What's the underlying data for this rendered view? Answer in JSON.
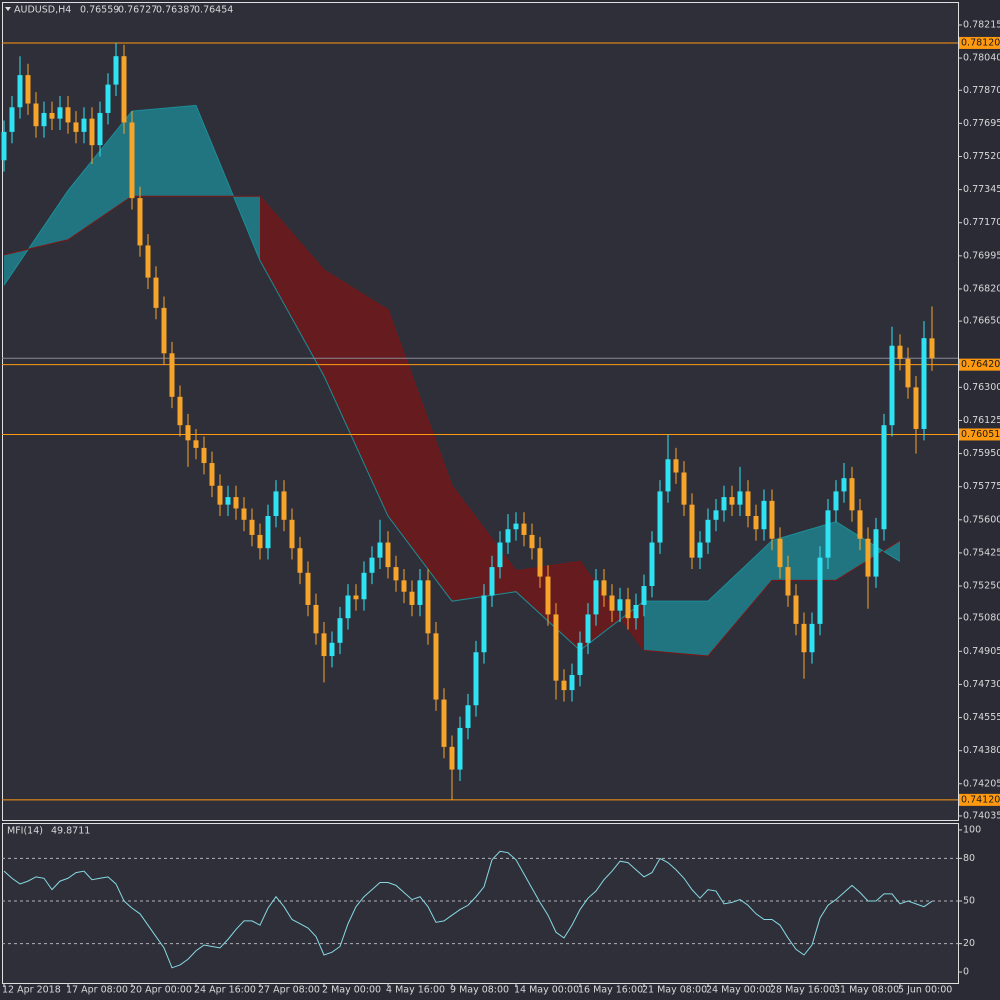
{
  "chart_data": [
    {
      "type": "candlestick",
      "symbol": "AUDUSD,H4",
      "categories": [
        "12 Apr 2018",
        null,
        null,
        null,
        null,
        null,
        null,
        null,
        "17 Apr 08:00",
        null,
        null,
        null,
        null,
        null,
        null,
        null,
        "20 Apr 00:00",
        null,
        null,
        null,
        null,
        null,
        null,
        null,
        "24 Apr 16:00",
        null,
        null,
        null,
        null,
        null,
        null,
        null,
        "27 Apr 08:00",
        null,
        null,
        null,
        null,
        null,
        null,
        null,
        "2 May 00:00",
        null,
        null,
        null,
        null,
        null,
        null,
        null,
        "4 May 16:00",
        null,
        null,
        null,
        null,
        null,
        null,
        null,
        "9 May 08:00",
        null,
        null,
        null,
        null,
        null,
        null,
        null,
        "14 May 00:00",
        null,
        null,
        null,
        null,
        null,
        null,
        null,
        "16 May 16:00",
        null,
        null,
        null,
        null,
        null,
        null,
        null,
        "21 May 08:00",
        null,
        null,
        null,
        null,
        null,
        null,
        null,
        "24 May 00:00",
        null,
        null,
        null,
        null,
        null,
        null,
        null,
        "28 May 16:00",
        null,
        null,
        null,
        null,
        null,
        null,
        null,
        "31 May 08:00",
        null,
        null,
        null,
        null,
        null,
        null,
        null,
        "5 Jun 00:00",
        null,
        null,
        null,
        null
      ],
      "open": [
        0.775,
        0.7765,
        0.7778,
        0.7795,
        0.778,
        0.7768,
        0.7775,
        0.7772,
        0.7778,
        0.777,
        0.7765,
        0.7772,
        0.7758,
        0.7775,
        0.779,
        0.7805,
        0.777,
        0.773,
        0.7705,
        0.7688,
        0.7672,
        0.7648,
        0.7625,
        0.761,
        0.7602,
        0.7598,
        0.759,
        0.7578,
        0.7568,
        0.7572,
        0.7566,
        0.756,
        0.7552,
        0.7545,
        0.7562,
        0.7575,
        0.756,
        0.7545,
        0.7532,
        0.7515,
        0.75,
        0.7488,
        0.7495,
        0.7508,
        0.752,
        0.7518,
        0.7532,
        0.754,
        0.7548,
        0.7535,
        0.7528,
        0.7522,
        0.7515,
        0.7528,
        0.75,
        0.7465,
        0.744,
        0.7428,
        0.745,
        0.7462,
        0.749,
        0.752,
        0.7535,
        0.7548,
        0.7555,
        0.7558,
        0.7552,
        0.7545,
        0.753,
        0.751,
        0.7475,
        0.747,
        0.7478,
        0.7495,
        0.751,
        0.7528,
        0.752,
        0.7512,
        0.7518,
        0.7508,
        0.7515,
        0.7525,
        0.7548,
        0.7575,
        0.7592,
        0.7585,
        0.7568,
        0.754,
        0.7548,
        0.756,
        0.7565,
        0.7572,
        0.7568,
        0.7575,
        0.7562,
        0.7555,
        0.757,
        0.755,
        0.7535,
        0.752,
        0.7505,
        0.749,
        0.7505,
        0.754,
        0.7565,
        0.7575,
        0.7582,
        0.7565,
        0.755,
        0.753,
        0.7555,
        0.761,
        0.7652,
        0.7645,
        0.763,
        0.7608,
        0.76559
      ],
      "high": [
        0.7771,
        0.7784,
        0.7805,
        0.7801,
        0.7786,
        0.7781,
        0.7781,
        0.7784,
        0.7784,
        0.7776,
        0.7778,
        0.7778,
        0.7781,
        0.7796,
        0.7812,
        0.7811,
        0.7776,
        0.7736,
        0.7711,
        0.7694,
        0.7678,
        0.7654,
        0.7631,
        0.7616,
        0.7608,
        0.7604,
        0.7596,
        0.7584,
        0.7578,
        0.7578,
        0.7572,
        0.7566,
        0.7558,
        0.7568,
        0.7581,
        0.7581,
        0.7566,
        0.7551,
        0.7538,
        0.7521,
        0.7506,
        0.7501,
        0.7514,
        0.7526,
        0.7526,
        0.7538,
        0.7546,
        0.756,
        0.7554,
        0.7541,
        0.7534,
        0.7528,
        0.7534,
        0.7534,
        0.7506,
        0.7471,
        0.7446,
        0.7456,
        0.7468,
        0.7496,
        0.7526,
        0.7541,
        0.7554,
        0.7563,
        0.7564,
        0.7564,
        0.7558,
        0.7551,
        0.7536,
        0.7516,
        0.7481,
        0.7484,
        0.7501,
        0.7516,
        0.7534,
        0.7534,
        0.7526,
        0.7524,
        0.7524,
        0.7521,
        0.7531,
        0.7554,
        0.7581,
        0.7605,
        0.7598,
        0.7591,
        0.7574,
        0.7554,
        0.7566,
        0.7571,
        0.7578,
        0.7578,
        0.7588,
        0.7581,
        0.7568,
        0.7576,
        0.7576,
        0.7556,
        0.7541,
        0.7526,
        0.7511,
        0.7511,
        0.7546,
        0.7571,
        0.7581,
        0.759,
        0.7588,
        0.7571,
        0.7556,
        0.7561,
        0.7616,
        0.7662,
        0.7658,
        0.7651,
        0.7636,
        0.7665,
        0.76727
      ],
      "low": [
        0.7744,
        0.7759,
        0.7772,
        0.7774,
        0.7762,
        0.7762,
        0.7766,
        0.7766,
        0.7764,
        0.7759,
        0.7759,
        0.7748,
        0.7752,
        0.7769,
        0.7784,
        0.7764,
        0.7724,
        0.7699,
        0.7682,
        0.7666,
        0.7642,
        0.7619,
        0.7604,
        0.7588,
        0.7592,
        0.7584,
        0.7572,
        0.7562,
        0.7562,
        0.756,
        0.7554,
        0.7546,
        0.7539,
        0.7539,
        0.7556,
        0.7554,
        0.7539,
        0.7526,
        0.7509,
        0.7494,
        0.7474,
        0.7482,
        0.7489,
        0.7502,
        0.7512,
        0.7512,
        0.7526,
        0.7534,
        0.7529,
        0.7522,
        0.7516,
        0.7509,
        0.7509,
        0.7494,
        0.7459,
        0.7434,
        0.7412,
        0.7422,
        0.7444,
        0.7456,
        0.7484,
        0.7514,
        0.7529,
        0.7542,
        0.7549,
        0.7546,
        0.7539,
        0.7524,
        0.7504,
        0.7465,
        0.7464,
        0.7464,
        0.7472,
        0.7489,
        0.7504,
        0.7514,
        0.7506,
        0.7506,
        0.7502,
        0.7502,
        0.7509,
        0.7519,
        0.7542,
        0.7569,
        0.7579,
        0.7562,
        0.7534,
        0.7534,
        0.7542,
        0.7554,
        0.7559,
        0.7562,
        0.7562,
        0.7556,
        0.7549,
        0.7549,
        0.7544,
        0.7529,
        0.7514,
        0.7499,
        0.7476,
        0.7484,
        0.7499,
        0.7534,
        0.7559,
        0.7569,
        0.7559,
        0.7544,
        0.7513,
        0.7524,
        0.7549,
        0.7604,
        0.7639,
        0.7624,
        0.7595,
        0.7602,
        0.76387
      ],
      "close": [
        0.7765,
        0.7778,
        0.7795,
        0.778,
        0.7768,
        0.7775,
        0.7772,
        0.7778,
        0.777,
        0.7765,
        0.7772,
        0.7758,
        0.7775,
        0.779,
        0.7805,
        0.777,
        0.773,
        0.7705,
        0.7688,
        0.7672,
        0.7648,
        0.7625,
        0.761,
        0.7602,
        0.7598,
        0.759,
        0.7578,
        0.7568,
        0.7572,
        0.7566,
        0.756,
        0.7552,
        0.7545,
        0.7562,
        0.7575,
        0.756,
        0.7545,
        0.7532,
        0.7515,
        0.75,
        0.7488,
        0.7495,
        0.7508,
        0.752,
        0.7518,
        0.7532,
        0.754,
        0.7548,
        0.7535,
        0.7528,
        0.7522,
        0.7515,
        0.7528,
        0.75,
        0.7465,
        0.744,
        0.7428,
        0.745,
        0.7462,
        0.749,
        0.752,
        0.7535,
        0.7548,
        0.7555,
        0.7558,
        0.7552,
        0.7545,
        0.753,
        0.751,
        0.7475,
        0.747,
        0.7478,
        0.7495,
        0.751,
        0.7528,
        0.752,
        0.7512,
        0.7518,
        0.7508,
        0.7515,
        0.7525,
        0.7548,
        0.7575,
        0.7592,
        0.7585,
        0.7568,
        0.754,
        0.7548,
        0.756,
        0.7565,
        0.7572,
        0.7568,
        0.7575,
        0.7562,
        0.7555,
        0.757,
        0.755,
        0.7535,
        0.752,
        0.7505,
        0.749,
        0.7505,
        0.754,
        0.7565,
        0.7575,
        0.7582,
        0.7565,
        0.755,
        0.753,
        0.7555,
        0.761,
        0.7652,
        0.7645,
        0.763,
        0.7608,
        0.7656,
        0.76454
      ],
      "up_color": "#2fe3f2",
      "down_color": "#f7a52a",
      "cloud": {
        "span_a": [
          0.7684,
          0.7734,
          0.7776,
          0.7779,
          0.7697,
          0.7636,
          0.7562,
          0.7517,
          0.7522,
          0.7491,
          0.7517,
          0.7517,
          0.7549,
          0.7559,
          0.7538
        ],
        "span_b": [
          0.77,
          0.7708,
          0.7731,
          0.7731,
          0.7731,
          0.7692,
          0.7671,
          0.7578,
          0.7533,
          0.7538,
          0.7491,
          0.7488,
          0.7528,
          0.7528,
          0.7549
        ],
        "up_color": "#1c8e98",
        "down_color": "#7a1616"
      },
      "levels": [
        {
          "value": 0.7812,
          "label": "0.78120"
        },
        {
          "value": 0.7642,
          "label": "0.76420"
        },
        0.76051,
        {
          "value": 0.7412,
          "label": "0.74120"
        }
      ],
      "level_color": "#ff9a10",
      "ylim": [
        0.74003,
        0.78347
      ],
      "yticks": [
        0.78215,
        {
          "value": 0.7804,
          "label": "0.78040"
        },
        {
          "value": 0.7787,
          "label": "0.77870"
        },
        0.77695,
        {
          "value": 0.7752,
          "label": "0.77520"
        },
        0.77345,
        {
          "value": 0.7717,
          "label": "0.77170"
        },
        0.76995,
        {
          "value": 0.7682,
          "label": "0.76820"
        },
        {
          "value": 0.7665,
          "label": "0.76650"
        },
        {
          "value": 0.763,
          "label": "0.76300"
        },
        0.76125,
        {
          "value": 0.7595,
          "label": "0.75950"
        },
        0.75775,
        {
          "value": 0.756,
          "label": "0.75600"
        },
        0.75425,
        {
          "value": 0.7525,
          "label": "0.75250"
        },
        {
          "value": 0.7508,
          "label": "0.75080"
        },
        0.74905,
        {
          "value": 0.7473,
          "label": "0.74730"
        },
        0.74555,
        {
          "value": 0.7438,
          "label": "0.74380"
        },
        0.74205,
        0.74035
      ],
      "grid": false
    },
    {
      "type": "line",
      "title": "MFI(14)",
      "color": "#86d9e2",
      "values": [
        71,
        66,
        62,
        64,
        67,
        66,
        58,
        64,
        66,
        70,
        71,
        65,
        66,
        67,
        62,
        50,
        45,
        41,
        33,
        25,
        17,
        3,
        5,
        9,
        15,
        19,
        18,
        17,
        23,
        30,
        36,
        36,
        33,
        45,
        53,
        46,
        37,
        34,
        31,
        25,
        12,
        14,
        18,
        34,
        46,
        53,
        58,
        63,
        63,
        61,
        56,
        51,
        53,
        46,
        35,
        36,
        40,
        44,
        47,
        53,
        60,
        79,
        85,
        84,
        79,
        69,
        59,
        49,
        40,
        28,
        24,
        33,
        44,
        52,
        57,
        65,
        71,
        78,
        77,
        72,
        67,
        70,
        80,
        77,
        72,
        66,
        58,
        52,
        58,
        57,
        48,
        49,
        51,
        47,
        41,
        37,
        37,
        33,
        24,
        16,
        12,
        19,
        38,
        47,
        51,
        56,
        61,
        56,
        50,
        50,
        55,
        55,
        48,
        50,
        48,
        46,
        49.8711
      ],
      "levels": [
        80,
        50,
        20
      ],
      "ylim": [
        -7,
        105.6
      ],
      "yticks": [
        100,
        80,
        50,
        20,
        0
      ]
    }
  ]
}
